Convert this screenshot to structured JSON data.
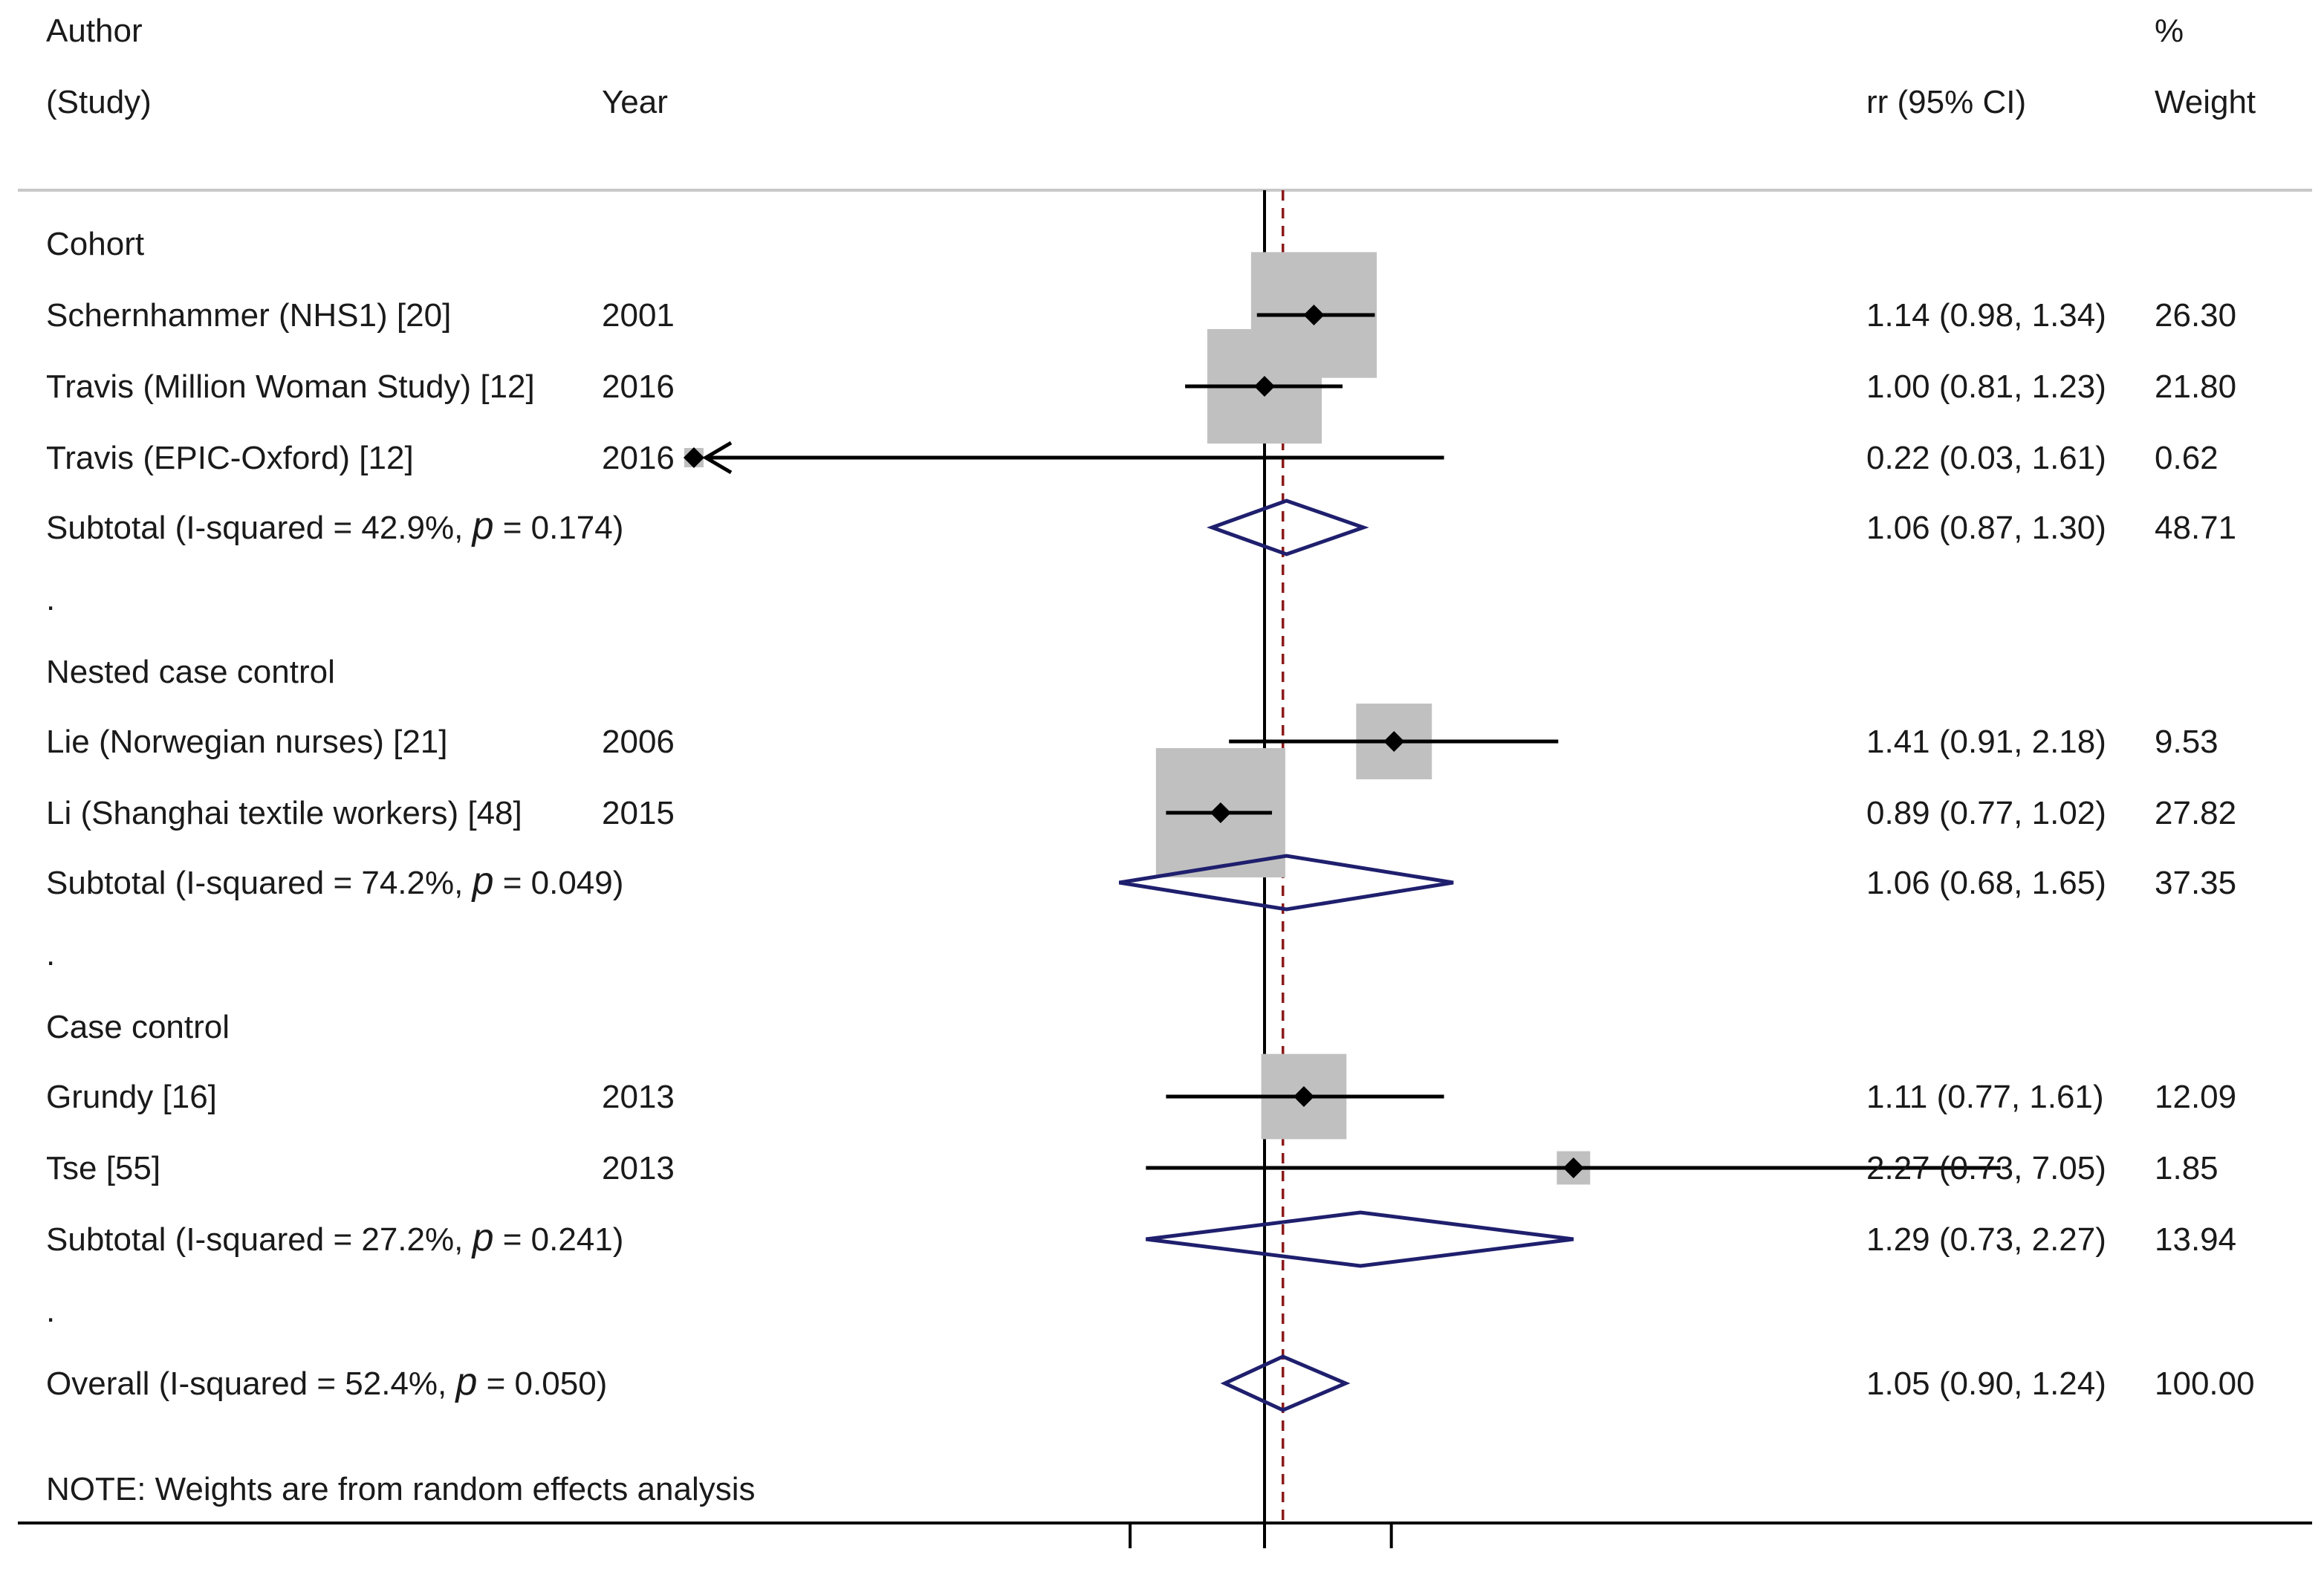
{
  "header": {
    "author_label": "Author",
    "study_label": "(Study)",
    "year_label": "Year",
    "ci_label": "rr (95% CI)",
    "pct_label": "%",
    "weight_label": "Weight"
  },
  "note": "NOTE: Weights are from random effects analysis",
  "spacer_dot": ".",
  "chart_data": {
    "type": "forest",
    "null_value": 1,
    "pooled_reference": 1.05,
    "x_scale": "log",
    "x_ticks": [
      0.7,
      1,
      1.4
    ],
    "groups": [
      {
        "name": "Cohort",
        "studies": [
          {
            "label": "Schernhammer (NHS1) [20]",
            "year": "2001",
            "rr": 1.14,
            "lo": 0.98,
            "hi": 1.34,
            "ci_text": "1.14 (0.98, 1.34)",
            "weight": 26.3,
            "weight_text": "26.30"
          },
          {
            "label": "Travis  (Million Woman Study) [12]",
            "year": "2016",
            "rr": 1.0,
            "lo": 0.81,
            "hi": 1.23,
            "ci_text": "1.00 (0.81, 1.23)",
            "weight": 21.8,
            "weight_text": "21.80"
          },
          {
            "label": "Travis  (EPIC-Oxford) [12]",
            "year": "2016",
            "rr": 0.22,
            "lo": 0.03,
            "hi": 1.61,
            "ci_text": "0.22 (0.03, 1.61)",
            "weight": 0.62,
            "weight_text": "0.62",
            "arrow_left": true
          }
        ],
        "subtotal": {
          "prefix": "Subtotal  (I-squared = 42.9%, ",
          "p_symbol": "p",
          "suffix": " = 0.174)",
          "rr": 1.06,
          "lo": 0.87,
          "hi": 1.3,
          "ci_text": "1.06 (0.87, 1.30)",
          "weight_text": "48.71"
        }
      },
      {
        "name": "Nested case control",
        "studies": [
          {
            "label": "Lie (Norwegian nurses) [21]",
            "year": "2006",
            "rr": 1.41,
            "lo": 0.91,
            "hi": 2.18,
            "ci_text": "1.41 (0.91, 2.18)",
            "weight": 9.53,
            "weight_text": "9.53"
          },
          {
            "label": "Li (Shanghai textile workers) [48]",
            "year": "2015",
            "rr": 0.89,
            "lo": 0.77,
            "hi": 1.02,
            "ci_text": "0.89 (0.77, 1.02)",
            "weight": 27.82,
            "weight_text": "27.82"
          }
        ],
        "subtotal": {
          "prefix": "Subtotal  (I-squared = 74.2%, ",
          "p_symbol": "p",
          "suffix": " = 0.049)",
          "rr": 1.06,
          "lo": 0.68,
          "hi": 1.65,
          "ci_text": "1.06 (0.68, 1.65)",
          "weight_text": "37.35"
        }
      },
      {
        "name": "Case control",
        "studies": [
          {
            "label": "Grundy  [16]",
            "year": "2013",
            "rr": 1.11,
            "lo": 0.77,
            "hi": 1.61,
            "ci_text": "1.11 (0.77, 1.61)",
            "weight": 12.09,
            "weight_text": "12.09"
          },
          {
            "label": "Tse [55]",
            "year": "2013",
            "rr": 2.27,
            "lo": 0.73,
            "hi": 7.05,
            "ci_text": "2.27 (0.73, 7.05)",
            "weight": 1.85,
            "weight_text": "1.85"
          }
        ],
        "subtotal": {
          "prefix": "Subtotal  (I-squared = 27.2%, ",
          "p_symbol": "p",
          "suffix": " = 0.241)",
          "rr": 1.29,
          "lo": 0.73,
          "hi": 2.27,
          "ci_text": "1.29 (0.73, 2.27)",
          "weight_text": "13.94"
        }
      }
    ],
    "overall": {
      "prefix": "Overall  (I-squared = 52.4%, ",
      "p_symbol": "p",
      "suffix": " = 0.050)",
      "rr": 1.05,
      "lo": 0.9,
      "hi": 1.24,
      "ci_text": "1.05 (0.90, 1.24)",
      "weight_text": "100.00"
    },
    "colors": {
      "box": "#c0c0c0",
      "point": "#000000",
      "diamond": "#1f1f6e",
      "null_line": "#000000",
      "ref_line": "#8b1a1a",
      "rule": "#c8c8c8"
    }
  }
}
